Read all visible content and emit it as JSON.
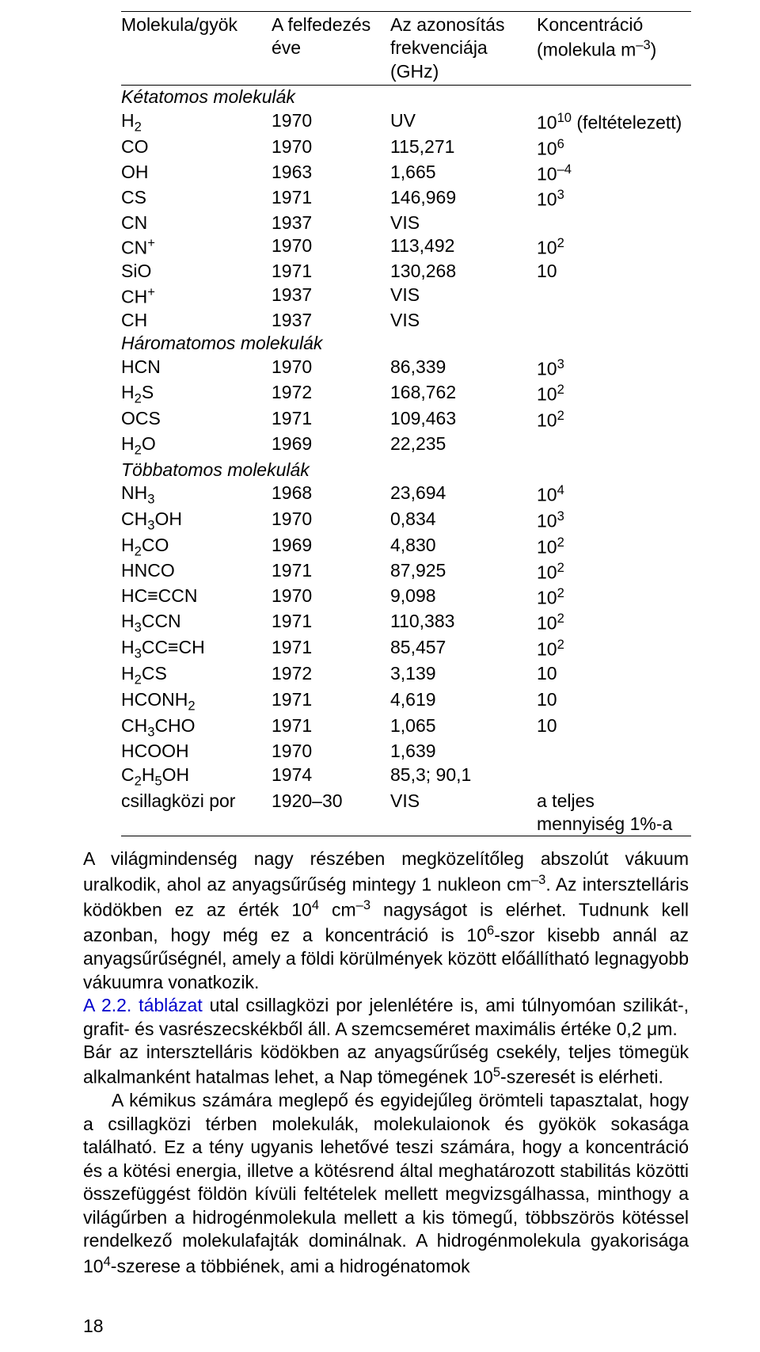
{
  "table": {
    "headers": {
      "c0": "Molekula/gyök",
      "c1": "A felfedezés éve",
      "c2": "Az azonosítás frekvenciája (GHz)",
      "c3_a": "Koncentráció",
      "c3_b": "(molekula m",
      "c3_exp": "–3",
      "c3_c": ")"
    },
    "section1": "Kétatomos molekulák",
    "section2": "Háromatomos molekulák",
    "section3": "Többatomos molekulák",
    "hydrogen_footnote": " (feltételezett)",
    "dust_col0": "csillagközi por",
    "dust_col1": "1920–30",
    "dust_col2": "VIS",
    "dust_col3": "a teljes mennyiség 1%-a",
    "rows1": [
      {
        "m": "H",
        "sub": "2",
        "sup": "",
        "y": "1970",
        "f": "UV",
        "c": "10",
        "ce": "10"
      },
      {
        "m": "CO",
        "sub": "",
        "sup": "",
        "y": "1970",
        "f": "115,271",
        "c": "10",
        "ce": "6"
      },
      {
        "m": "OH",
        "sub": "",
        "sup": "",
        "y": "1963",
        "f": "1,665",
        "c": "10",
        "ce": "–4"
      },
      {
        "m": "CS",
        "sub": "",
        "sup": "",
        "y": "1971",
        "f": "146,969",
        "c": "10",
        "ce": "3"
      },
      {
        "m": "CN",
        "sub": "",
        "sup": "",
        "y": "1937",
        "f": "VIS",
        "c": "",
        "ce": ""
      },
      {
        "m": "CN",
        "sub": "",
        "sup": "+",
        "y": "1970",
        "f": "113,492",
        "c": "10",
        "ce": "2"
      },
      {
        "m": "SiO",
        "sub": "",
        "sup": "",
        "y": "1971",
        "f": "130,268",
        "c": "10",
        "ce": ""
      },
      {
        "m": "CH",
        "sub": "",
        "sup": "+",
        "y": "1937",
        "f": "VIS",
        "c": "",
        "ce": ""
      },
      {
        "m": "CH",
        "sub": "",
        "sup": "",
        "y": "1937",
        "f": "VIS",
        "c": "",
        "ce": ""
      }
    ],
    "rows2": [
      {
        "m": "HCN",
        "sub": "",
        "sup": "",
        "y": "1970",
        "f": "86,339",
        "c": "10",
        "ce": "3"
      },
      {
        "m": "H",
        "sub": "2",
        "m2": "S",
        "y": "1972",
        "f": "168,762",
        "c": "10",
        "ce": "2"
      },
      {
        "m": "OCS",
        "sub": "",
        "sup": "",
        "y": "1971",
        "f": "109,463",
        "c": "10",
        "ce": "2"
      },
      {
        "m": "H",
        "sub": "2",
        "m2": "O",
        "y": "1969",
        "f": "22,235",
        "c": "",
        "ce": ""
      }
    ],
    "rows3": [
      {
        "html": "NH<sub>3</sub>",
        "y": "1968",
        "f": "23,694",
        "c": "10",
        "ce": "4"
      },
      {
        "html": "CH<sub>3</sub>OH",
        "y": "1970",
        "f": "0,834",
        "c": "10",
        "ce": "3"
      },
      {
        "html": "H<sub>2</sub>CO",
        "y": "1969",
        "f": "4,830",
        "c": "10",
        "ce": "2"
      },
      {
        "html": "HNCO",
        "y": "1971",
        "f": "87,925",
        "c": "10",
        "ce": "2"
      },
      {
        "html": "HC≡CCN",
        "y": "1970",
        "f": "9,098",
        "c": "10",
        "ce": "2"
      },
      {
        "html": "H<sub>3</sub>CCN",
        "y": "1971",
        "f": "110,383",
        "c": "10",
        "ce": "2"
      },
      {
        "html": "H<sub>3</sub>CC≡CH",
        "y": "1971",
        "f": "85,457",
        "c": "10",
        "ce": "2"
      },
      {
        "html": "H<sub>2</sub>CS",
        "y": "1972",
        "f": "3,139",
        "c": "10",
        "ce": ""
      },
      {
        "html": "HCONH<sub>2</sub>",
        "y": "1971",
        "f": "4,619",
        "c": "10",
        "ce": ""
      },
      {
        "html": "CH<sub>3</sub>CHO",
        "y": "1971",
        "f": "1,065",
        "c": "10",
        "ce": ""
      },
      {
        "html": "HCOOH",
        "y": "1970",
        "f": "1,639",
        "c": "",
        "ce": ""
      },
      {
        "html": "C<sub>2</sub>H<sub>5</sub>OH",
        "y": "1974",
        "f": "85,3; 90,1",
        "c": "",
        "ce": ""
      }
    ]
  },
  "body": {
    "p1a": "A világmindenség nagy részében megközelítőleg abszolút vákuum uralkodik, ahol az anyagsűrűség mintegy 1 nukleon cm",
    "p1a_exp": "–3",
    "p1b": ". Az intersztelláris ködökben ez az érték 10",
    "p1b_exp": "4",
    "p1c": " cm",
    "p1c_exp": "–3",
    "p1d": " nagyságot is elérhet. Tudnunk kell azonban, hogy még ez a koncentráció is 10",
    "p1d_exp": "6",
    "p1e": "-szor kisebb annál az anyagsűrűségnél, amely a földi körülmények között előállítható legnagyobb vákuumra vonatkozik.",
    "p2a_link": "A 2.2. táblázat",
    "p2b": " utal csillagközi por jelenlétére is, ami túlnyomóan szilikát-, grafit- és vasrészecskékből áll. A szemcseméret maximális értéke 0,2 μm.",
    "p3a": "Bár az intersztelláris ködökben az anyagsűrűség csekély, teljes tömegük alkalmanként hatalmas lehet, a Nap tömegének 10",
    "p3a_exp": "5",
    "p3b": "-szeresét is elérheti.",
    "p4a": "A kémikus számára meglepő és egyidejűleg örömteli tapasztalat, hogy a csillagközi térben molekulák, molekulaionok és gyökök sokasága található. Ez a tény ugyanis lehetővé teszi számára, hogy a koncentráció és a kötési energia, illetve a kötésrend által meghatározott stabilitás közötti összefüggést földön kívüli feltételek mellett megvizsgálhassa, minthogy a világűrben a hidrogénmolekula mellett a kis tömegű, többszörös kötéssel rendelkező molekulafajták dominálnak. A hidrogénmolekula gyakorisága 10",
    "p4a_exp": "4",
    "p4b": "-szerese a többiének, ami a hidrogénatomok"
  },
  "pagenum": "18"
}
